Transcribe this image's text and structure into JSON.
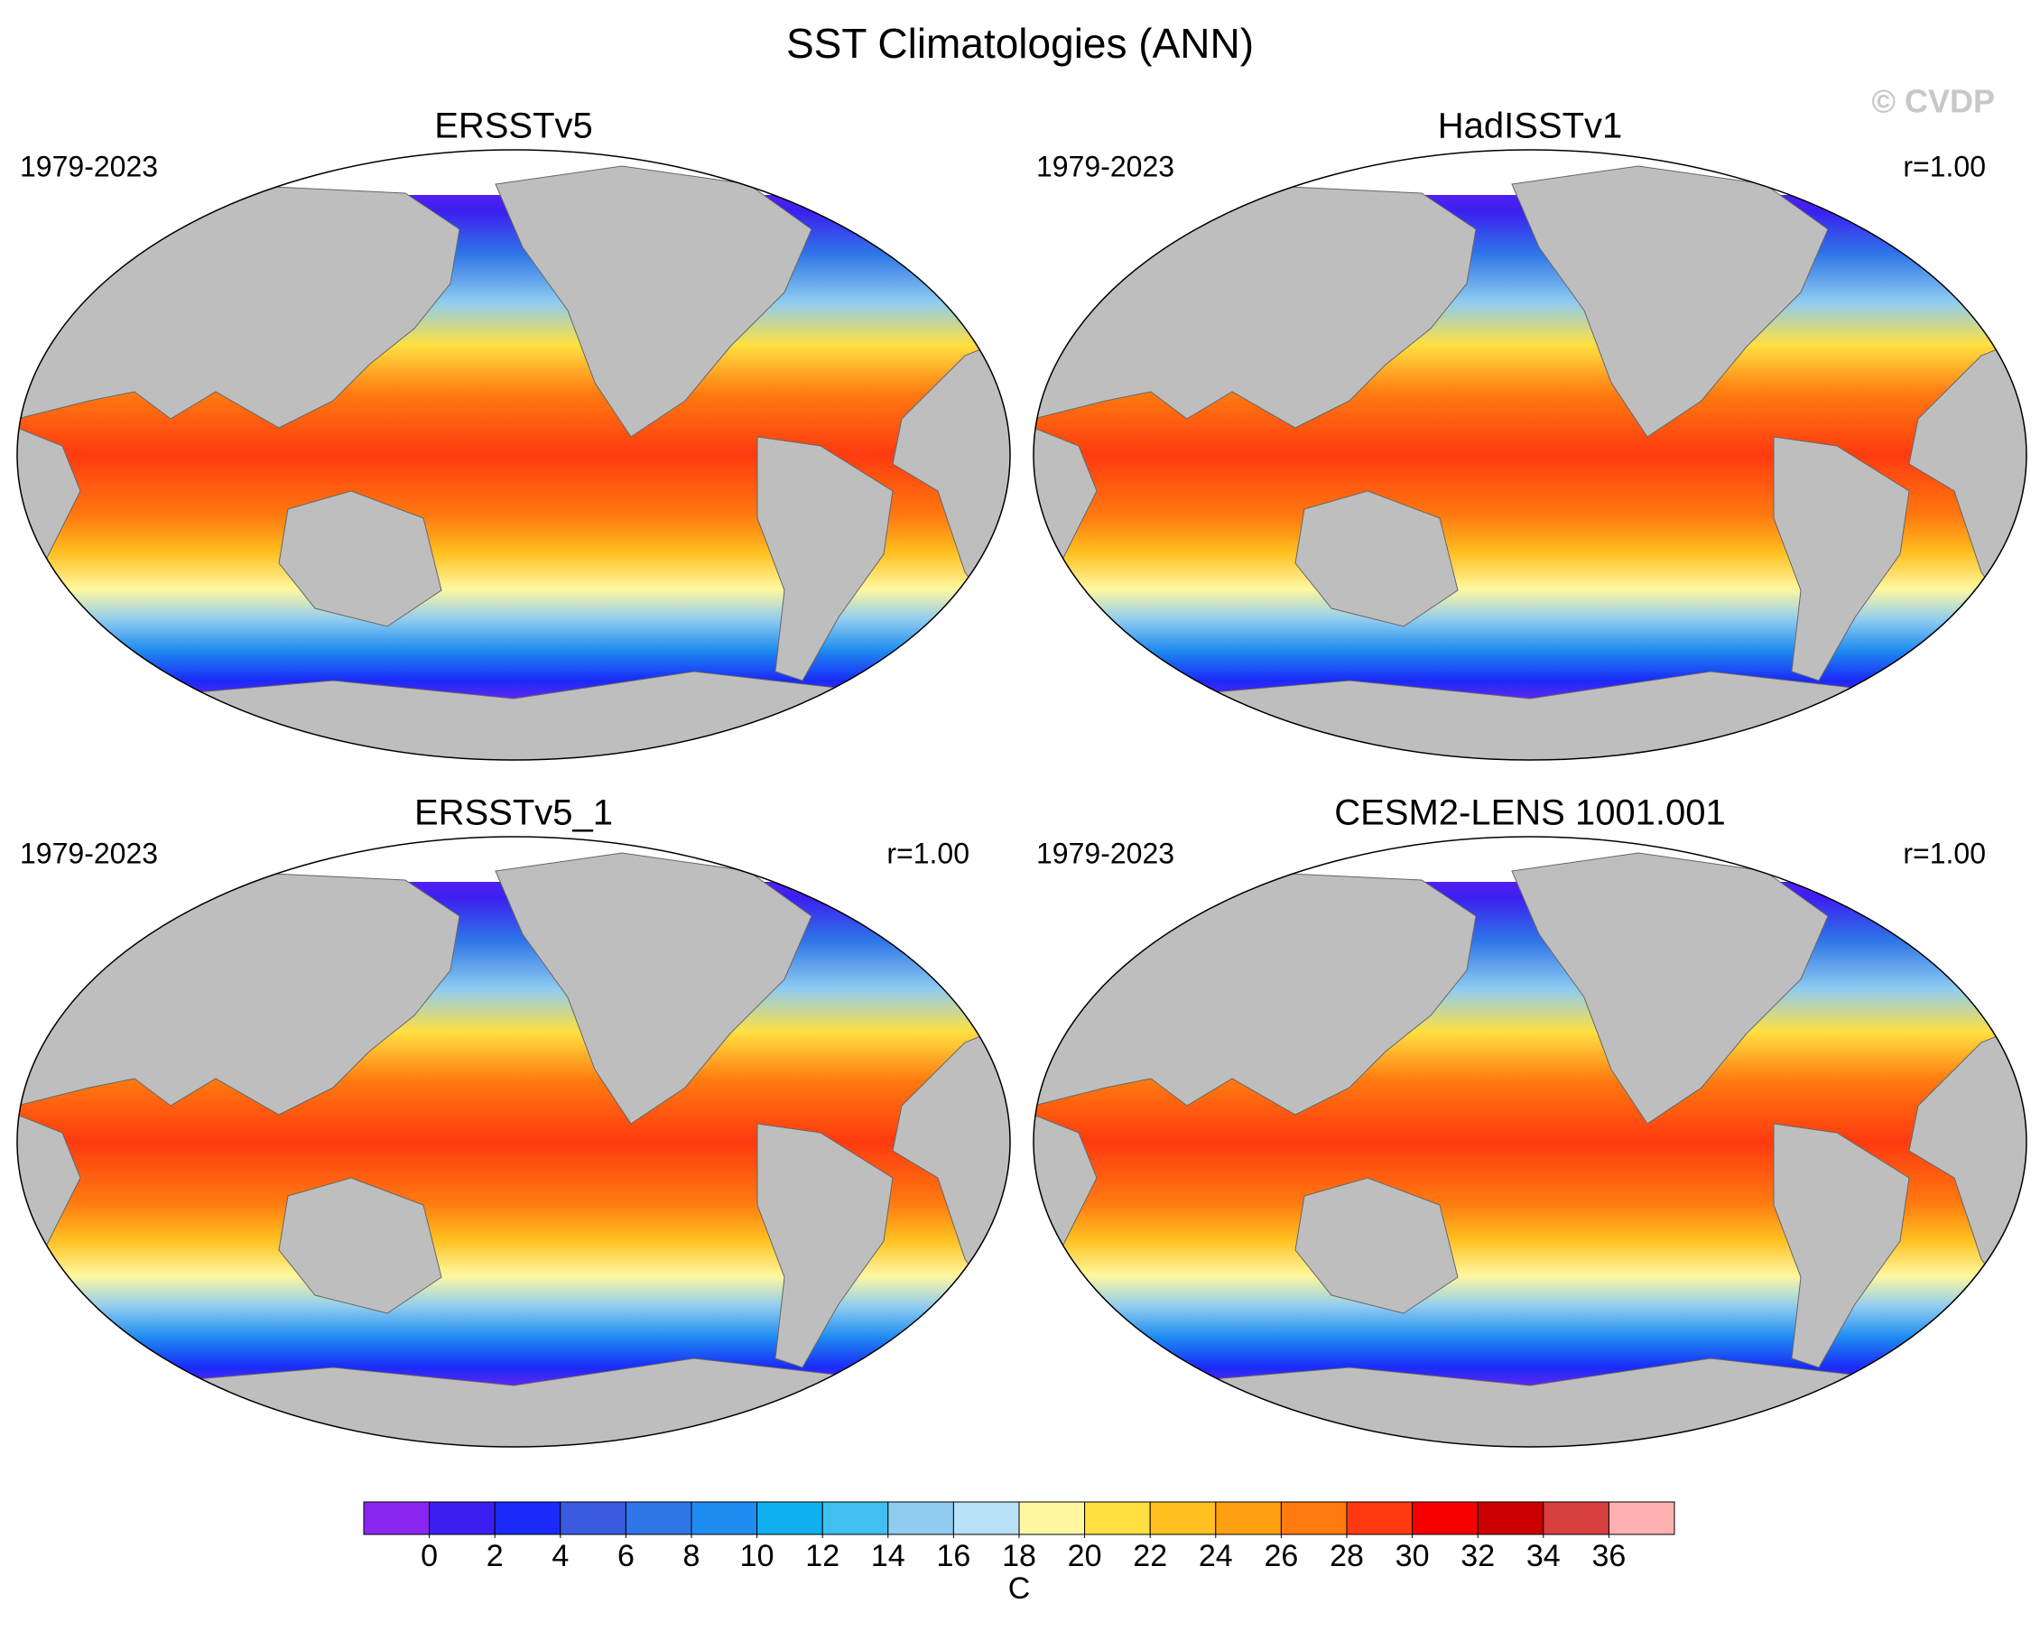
{
  "title": "SST Climatologies (ANN)",
  "watermark": "© CVDP",
  "panels": [
    {
      "title": "ERSSTv5",
      "period": "1979-2023"
    },
    {
      "title": "HadISSTv1",
      "period": "1979-2023",
      "r": "r=1.00"
    },
    {
      "title": "ERSSTv5_1",
      "period": "1979-2023",
      "r": "r=1.00"
    },
    {
      "title": "CESM2-LENS 1001.001",
      "period": "1979-2023",
      "r": "r=1.00"
    }
  ],
  "colorbar": {
    "colors": [
      "#8c25f0",
      "#3c1ff0",
      "#1a2af8",
      "#3a5ae0",
      "#2e75e8",
      "#1e8cf0",
      "#10b0f0",
      "#40c0f0",
      "#90ccf0",
      "#b8e0f6",
      "#fff8a0",
      "#ffe040",
      "#ffc020",
      "#ffa010",
      "#ff7a10",
      "#ff3a10",
      "#f80000",
      "#cc0000",
      "#d84040",
      "#ffb0b0"
    ],
    "ticks": [
      0,
      2,
      4,
      6,
      8,
      10,
      12,
      14,
      16,
      18,
      20,
      22,
      24,
      26,
      28,
      30,
      32,
      34,
      36
    ],
    "unit": "C"
  }
}
